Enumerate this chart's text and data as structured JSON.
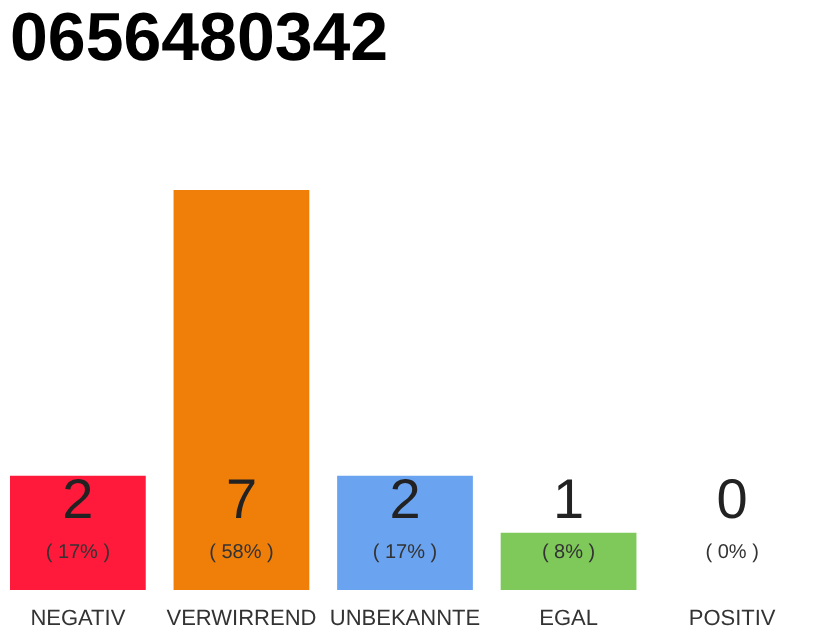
{
  "chart_data": {
    "type": "bar",
    "title": "0656480342",
    "categories": [
      "NEGATIV",
      "VERWIRREND",
      "UNBEKANNTE",
      "EGAL",
      "POSITIV"
    ],
    "values": [
      2,
      7,
      2,
      1,
      0
    ],
    "colors": [
      "#ff1a3c",
      "#f07f0a",
      "#6aa3f0",
      "#7ec95a",
      "#bdbdbd"
    ],
    "tick_labels": "x",
    "data_labels": true,
    "annotations": [
      "( 17% )",
      "( 58% )",
      "( 17% )",
      "( 8% )",
      "( 0% )"
    ]
  }
}
